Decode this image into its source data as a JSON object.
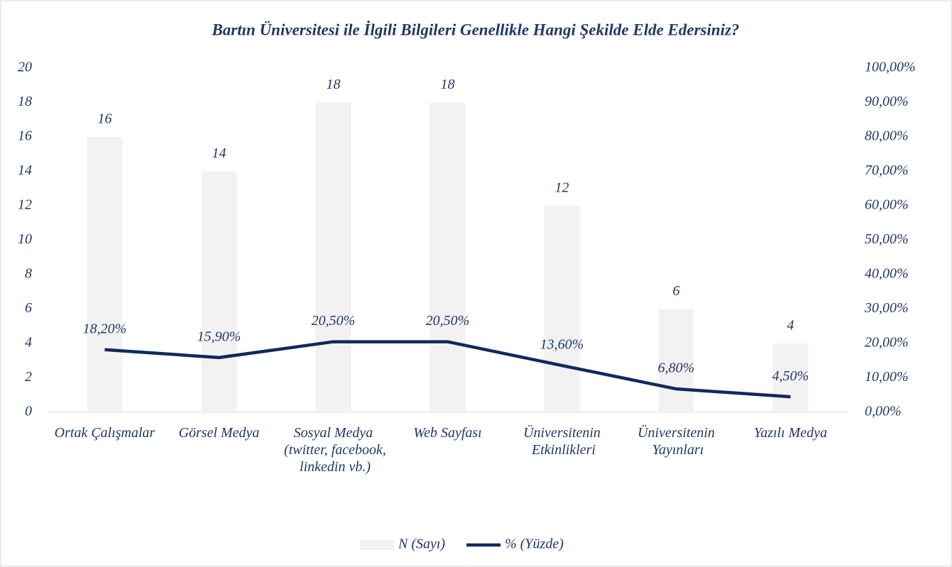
{
  "chart_data": {
    "type": "bar",
    "title": "Bartın Üniversitesi ile İlgili Bilgileri Genellikle Hangi Şekilde Elde Edersiniz?",
    "categories": [
      "Ortak Çalışmalar",
      "Görsel Medya",
      "Sosyal Medya (twitter, facebook, linkedin vb.)",
      "Web Sayfası",
      "Üniversitenin Etkinlikleri",
      "Üniversitenin Yayınları",
      "Yazılı Medya"
    ],
    "series": [
      {
        "name": "N (Sayı)",
        "type": "bar",
        "color": "#f2f2f2",
        "values": [
          16,
          14,
          18,
          18,
          12,
          6,
          4
        ]
      },
      {
        "name": "% (Yüzde)",
        "type": "line",
        "axis": "y2",
        "color": "#0f2a5e",
        "values": [
          18.2,
          15.9,
          20.5,
          20.5,
          13.6,
          6.8,
          4.5
        ],
        "value_labels": [
          "18,20%",
          "15,90%",
          "20,50%",
          "20,50%",
          "13,60%",
          "6,80%",
          "4,50%"
        ]
      }
    ],
    "ylim": [
      0,
      20
    ],
    "yticks": [
      0,
      2,
      4,
      6,
      8,
      10,
      12,
      14,
      16,
      18,
      20
    ],
    "y2lim": [
      0,
      100
    ],
    "y2ticks": [
      {
        "value": 0,
        "label": "0,00%"
      },
      {
        "value": 10,
        "label": "10,00%"
      },
      {
        "value": 20,
        "label": "20,00%"
      },
      {
        "value": 30,
        "label": "30,00%"
      },
      {
        "value": 40,
        "label": "40,00%"
      },
      {
        "value": 50,
        "label": "50,00%"
      },
      {
        "value": 60,
        "label": "60,00%"
      },
      {
        "value": 70,
        "label": "70,00%"
      },
      {
        "value": 80,
        "label": "80,00%"
      },
      {
        "value": 90,
        "label": "90,00%"
      },
      {
        "value": 100,
        "label": "100,00%"
      }
    ],
    "legend": "bottom"
  }
}
